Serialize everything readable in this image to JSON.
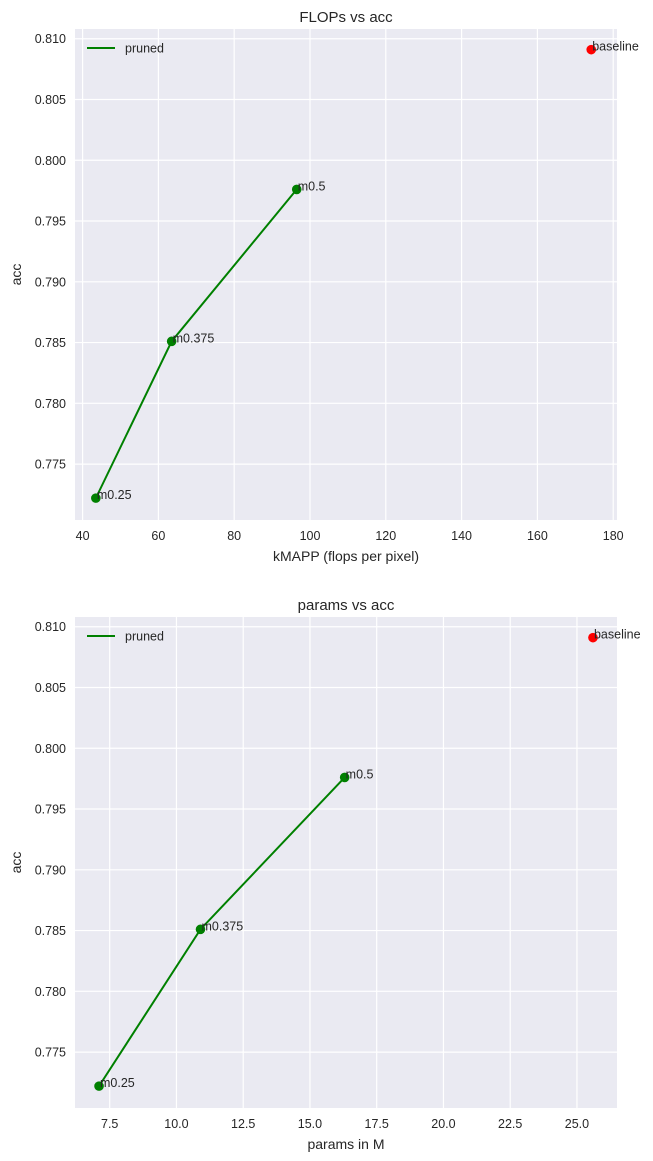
{
  "chart_data": [
    {
      "type": "line",
      "title": "FLOPs vs acc",
      "xlabel": "kMAPP (flops per pixel)",
      "ylabel": "acc",
      "xlim": [
        38,
        181
      ],
      "ylim": [
        0.7704,
        0.8108
      ],
      "xticks": [
        40,
        60,
        80,
        100,
        120,
        140,
        160,
        180
      ],
      "yticks": [
        0.775,
        0.78,
        0.785,
        0.79,
        0.795,
        0.8,
        0.805,
        0.81
      ],
      "grid": true,
      "legend": {
        "position": "top-left",
        "entries": [
          "pruned"
        ]
      },
      "series": [
        {
          "name": "pruned",
          "color": "#008000",
          "points": [
            {
              "x": 43.5,
              "y": 0.7722,
              "label": "m0.25"
            },
            {
              "x": 63.5,
              "y": 0.7851,
              "label": "m0.375"
            },
            {
              "x": 96.5,
              "y": 0.7976,
              "label": "m0.5"
            }
          ]
        }
      ],
      "extra_points": [
        {
          "x": 174.2,
          "y": 0.8091,
          "label": "baseline",
          "color": "#ff0000"
        }
      ]
    },
    {
      "type": "line",
      "title": "params vs acc",
      "xlabel": "params in M",
      "ylabel": "acc",
      "xlim": [
        6.2,
        26.5
      ],
      "ylim": [
        0.7704,
        0.8108
      ],
      "xticks": [
        7.5,
        10.0,
        12.5,
        15.0,
        17.5,
        20.0,
        22.5,
        25.0
      ],
      "yticks": [
        0.775,
        0.78,
        0.785,
        0.79,
        0.795,
        0.8,
        0.805,
        0.81
      ],
      "grid": true,
      "legend": {
        "position": "top-left",
        "entries": [
          "pruned"
        ]
      },
      "series": [
        {
          "name": "pruned",
          "color": "#008000",
          "points": [
            {
              "x": 7.1,
              "y": 0.7722,
              "label": "m0.25"
            },
            {
              "x": 10.9,
              "y": 0.7851,
              "label": "m0.375"
            },
            {
              "x": 16.3,
              "y": 0.7976,
              "label": "m0.5"
            }
          ]
        }
      ],
      "extra_points": [
        {
          "x": 25.6,
          "y": 0.8091,
          "label": "baseline",
          "color": "#ff0000"
        }
      ]
    }
  ]
}
